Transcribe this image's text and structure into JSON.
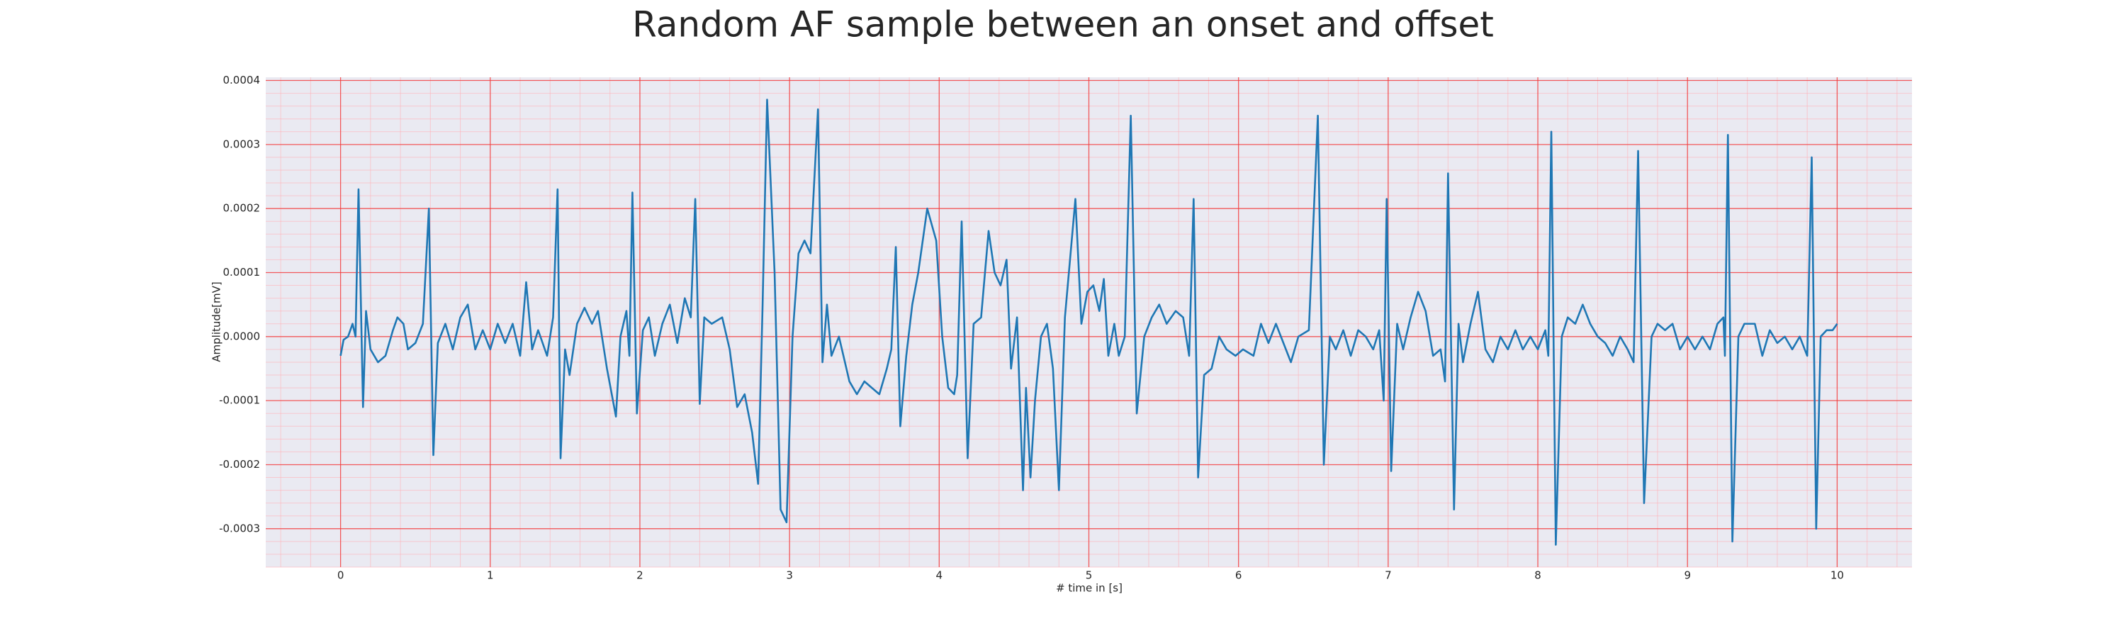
{
  "chart_data": {
    "type": "line",
    "title": "Random AF sample between an onset and offset",
    "xlabel": "# time in [s]",
    "ylabel": "Amplitude[mV]",
    "color": "#1f77b4",
    "grid": true,
    "minor_grid": true,
    "xlim": [
      -0.5,
      10.5
    ],
    "ylim": [
      -0.00036,
      0.000405
    ],
    "xticks": [
      0,
      1,
      2,
      3,
      4,
      5,
      6,
      7,
      8,
      9,
      10
    ],
    "yticks": [
      {
        "value": -0.0003,
        "label": "-0.0003"
      },
      {
        "value": -0.0002,
        "label": "-0.0002"
      },
      {
        "value": -0.0001,
        "label": "-0.0001"
      },
      {
        "value": 0,
        "label": "0.0000"
      },
      {
        "value": 0.0001,
        "label": "0.0001"
      },
      {
        "value": 0.0002,
        "label": "0.0002"
      },
      {
        "value": 0.0003,
        "label": "0.0003"
      },
      {
        "value": 0.0004,
        "label": "0.0004"
      }
    ],
    "x": [
      0,
      0.02,
      0.05,
      0.08,
      0.1,
      0.12,
      0.15,
      0.17,
      0.2,
      0.25,
      0.3,
      0.35,
      0.38,
      0.42,
      0.45,
      0.5,
      0.55,
      0.59,
      0.62,
      0.65,
      0.7,
      0.75,
      0.8,
      0.85,
      0.9,
      0.95,
      1.0,
      1.05,
      1.1,
      1.15,
      1.2,
      1.24,
      1.28,
      1.32,
      1.38,
      1.42,
      1.45,
      1.47,
      1.5,
      1.53,
      1.58,
      1.63,
      1.68,
      1.72,
      1.78,
      1.82,
      1.84,
      1.87,
      1.91,
      1.93,
      1.95,
      1.98,
      2.02,
      2.06,
      2.1,
      2.15,
      2.2,
      2.25,
      2.3,
      2.34,
      2.37,
      2.4,
      2.43,
      2.48,
      2.55,
      2.6,
      2.65,
      2.7,
      2.75,
      2.79,
      2.82,
      2.85,
      2.9,
      2.94,
      2.98,
      3.02,
      3.06,
      3.1,
      3.14,
      3.19,
      3.22,
      3.25,
      3.28,
      3.33,
      3.4,
      3.45,
      3.5,
      3.55,
      3.6,
      3.65,
      3.68,
      3.71,
      3.74,
      3.78,
      3.82,
      3.86,
      3.92,
      3.98,
      4.02,
      4.06,
      4.1,
      4.12,
      4.15,
      4.19,
      4.23,
      4.28,
      4.33,
      4.37,
      4.41,
      4.45,
      4.48,
      4.52,
      4.56,
      4.58,
      4.61,
      4.64,
      4.68,
      4.72,
      4.76,
      4.8,
      4.84,
      4.91,
      4.95,
      4.99,
      5.03,
      5.07,
      5.1,
      5.13,
      5.17,
      5.2,
      5.24,
      5.28,
      5.32,
      5.37,
      5.42,
      5.47,
      5.52,
      5.58,
      5.63,
      5.67,
      5.7,
      5.73,
      5.77,
      5.82,
      5.87,
      5.92,
      5.98,
      6.03,
      6.1,
      6.15,
      6.2,
      6.25,
      6.3,
      6.35,
      6.4,
      6.47,
      6.53,
      6.57,
      6.61,
      6.65,
      6.7,
      6.75,
      6.8,
      6.85,
      6.9,
      6.94,
      6.97,
      6.99,
      7.02,
      7.06,
      7.1,
      7.15,
      7.2,
      7.25,
      7.3,
      7.35,
      7.38,
      7.4,
      7.44,
      7.47,
      7.5,
      7.55,
      7.6,
      7.65,
      7.7,
      7.75,
      7.8,
      7.85,
      7.9,
      7.95,
      8.0,
      8.05,
      8.07,
      8.09,
      8.12,
      8.16,
      8.2,
      8.25,
      8.3,
      8.35,
      8.4,
      8.45,
      8.5,
      8.55,
      8.6,
      8.64,
      8.67,
      8.71,
      8.76,
      8.8,
      8.85,
      8.9,
      8.95,
      9.0,
      9.05,
      9.1,
      9.15,
      9.2,
      9.24,
      9.25,
      9.27,
      9.3,
      9.34,
      9.38,
      9.45,
      9.5,
      9.55,
      9.6,
      9.65,
      9.7,
      9.75,
      9.8,
      9.83,
      9.86,
      9.89,
      9.93,
      9.97,
      10.0
    ],
    "values": [
      -3e-05,
      -5e-06,
      0,
      2e-05,
      0,
      0.00023,
      -0.00011,
      4e-05,
      -2e-05,
      -4e-05,
      -3e-05,
      1e-05,
      3e-05,
      2e-05,
      -2e-05,
      -1e-05,
      2e-05,
      0.0002,
      -0.000185,
      -1e-05,
      2e-05,
      -2e-05,
      3e-05,
      5e-05,
      -2e-05,
      1e-05,
      -2e-05,
      2e-05,
      -1e-05,
      2e-05,
      -3e-05,
      8.5e-05,
      -2e-05,
      1e-05,
      -3e-05,
      3e-05,
      0.00023,
      -0.00019,
      -2e-05,
      -6e-05,
      2e-05,
      4.5e-05,
      2e-05,
      4e-05,
      -5e-05,
      -0.0001,
      -0.000125,
      0,
      4e-05,
      -3e-05,
      0.000225,
      -0.00012,
      1e-05,
      3e-05,
      -3e-05,
      2e-05,
      5e-05,
      -1e-05,
      6e-05,
      3e-05,
      0.000215,
      -0.000105,
      3e-05,
      2e-05,
      3e-05,
      -2e-05,
      -0.00011,
      -9e-05,
      -0.00015,
      -0.00023,
      5e-05,
      0.00037,
      0.0001,
      -0.00027,
      -0.00029,
      0,
      0.00013,
      0.00015,
      0.00013,
      0.000355,
      -4e-05,
      5e-05,
      -3e-05,
      0,
      -7e-05,
      -9e-05,
      -7e-05,
      -8e-05,
      -9e-05,
      -5e-05,
      -2e-05,
      0.00014,
      -0.00014,
      -3e-05,
      5e-05,
      0.0001,
      0.0002,
      0.00015,
      0,
      -8e-05,
      -9e-05,
      -6e-05,
      0.00018,
      -0.00019,
      2e-05,
      3e-05,
      0.000165,
      0.0001,
      8e-05,
      0.00012,
      -5e-05,
      3e-05,
      -0.00024,
      -8e-05,
      -0.00022,
      -0.0001,
      0,
      2e-05,
      -5e-05,
      -0.00024,
      3e-05,
      0.000215,
      2e-05,
      7e-05,
      8e-05,
      4e-05,
      9e-05,
      -3e-05,
      2e-05,
      -3e-05,
      0,
      0.000345,
      -0.00012,
      0,
      3e-05,
      5e-05,
      2e-05,
      4e-05,
      3e-05,
      -3e-05,
      0.000215,
      -0.00022,
      -6e-05,
      -5e-05,
      0,
      -2e-05,
      -3e-05,
      -2e-05,
      -3e-05,
      2e-05,
      -1e-05,
      2e-05,
      -1e-05,
      -4e-05,
      0,
      1e-05,
      0.000345,
      -0.0002,
      0,
      -2e-05,
      1e-05,
      -3e-05,
      1e-05,
      0,
      -2e-05,
      1e-05,
      -0.0001,
      0.000215,
      -0.00021,
      2e-05,
      -2e-05,
      3e-05,
      7e-05,
      4e-05,
      -3e-05,
      -2e-05,
      -7e-05,
      0.000255,
      -0.00027,
      2e-05,
      -4e-05,
      2e-05,
      7e-05,
      -2e-05,
      -4e-05,
      0,
      -2e-05,
      1e-05,
      -2e-05,
      0,
      -2e-05,
      1e-05,
      -3e-05,
      0.00032,
      -0.000325,
      0,
      3e-05,
      2e-05,
      5e-05,
      2e-05,
      0,
      -1e-05,
      -3e-05,
      0,
      -2e-05,
      -4e-05,
      0.00029,
      -0.00026,
      0,
      2e-05,
      1e-05,
      2e-05,
      -2e-05,
      0,
      -2e-05,
      0,
      -2e-05,
      2e-05,
      3e-05,
      -3e-05,
      0.000315,
      -0.00032,
      0,
      2e-05,
      2e-05,
      -3e-05,
      1e-05,
      -1e-05,
      0,
      -2e-05,
      0,
      -3e-05,
      0.00028,
      -0.0003,
      0,
      1e-05,
      1e-05,
      2e-05
    ]
  }
}
